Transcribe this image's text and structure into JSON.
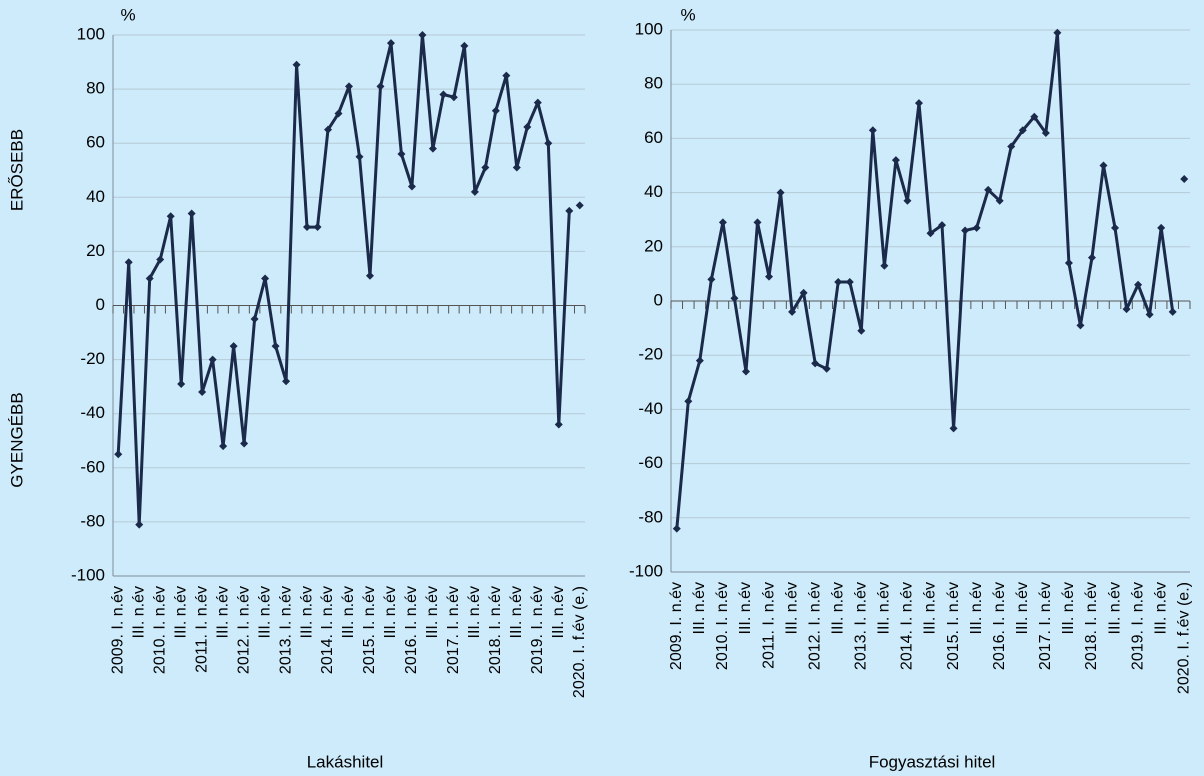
{
  "chart_data": [
    {
      "type": "line",
      "xlabel": "Lakáshitel",
      "unit_label": "%",
      "annotations": [
        "ERŐSEBB",
        "GYENGÉBB"
      ],
      "categories": [
        "2009. I. n.év",
        null,
        "III. n.év",
        null,
        "2010. I. n.év",
        null,
        "III. n.év",
        null,
        "2011. I. n.év",
        null,
        "III. n.év",
        null,
        "2012. I. n.év",
        null,
        "III. n.év",
        null,
        "2013. I. n.év",
        null,
        "III. n.év",
        null,
        "2014. I. n.év",
        null,
        "III. n.év",
        null,
        "2015. I. n.év",
        null,
        "III. n.év",
        null,
        "2016. I. n.év",
        null,
        "III. n.év",
        null,
        "2017. I. n.év",
        null,
        "III. n.év",
        null,
        "2018. I. n.év",
        null,
        "III. n.év",
        null,
        "2019. I. n.év",
        null,
        "III. n.év",
        null,
        "2020. I. f.év (e.)"
      ],
      "series": [
        {
          "color": "#1b2a4a",
          "values": [
            -55,
            16,
            -81,
            10,
            17,
            33,
            -29,
            34,
            -32,
            -20,
            -52,
            -15,
            -51,
            -5,
            10,
            -15,
            -28,
            89,
            29,
            29,
            65,
            71,
            81,
            55,
            11,
            81,
            97,
            56,
            44,
            100,
            58,
            78,
            77,
            96,
            42,
            51,
            72,
            85,
            51,
            66,
            75,
            60,
            -44,
            35,
            null
          ]
        },
        {
          "color": "#1b2a4a",
          "values": [
            null,
            null,
            null,
            null,
            null,
            null,
            null,
            null,
            null,
            null,
            null,
            null,
            null,
            null,
            null,
            null,
            null,
            null,
            null,
            null,
            null,
            null,
            null,
            null,
            null,
            null,
            null,
            null,
            null,
            null,
            null,
            null,
            null,
            null,
            null,
            null,
            null,
            null,
            null,
            null,
            null,
            null,
            null,
            null,
            37
          ]
        }
      ],
      "ylim": [
        -100,
        100
      ],
      "yticks": [
        -100,
        -80,
        -60,
        -40,
        -20,
        0,
        20,
        40,
        60,
        80,
        100
      ],
      "grid": true
    },
    {
      "type": "line",
      "xlabel": "Fogyasztási hitel",
      "unit_label": "%",
      "categories": [
        "2009. I. n.év",
        null,
        "III. n.év",
        null,
        "2010. I. n.év",
        null,
        "III. n.év",
        null,
        "2011. I. n.év",
        null,
        "III. n.év",
        null,
        "2012. I. n.év",
        null,
        "III. n.év",
        null,
        "2013. I. n.év",
        null,
        "III. n.év",
        null,
        "2014. I. n.év",
        null,
        "III. n.év",
        null,
        "2015. I. n.év",
        null,
        "III. n.év",
        null,
        "2016. I. n.év",
        null,
        "III. n.év",
        null,
        "2017. I. n.év",
        null,
        "III. n.év",
        null,
        "2018. I. n.év",
        null,
        "III. n.év",
        null,
        "2019. I. n.év",
        null,
        "III. n.év",
        null,
        "2020. I. f.év (e.)"
      ],
      "series": [
        {
          "color": "#1b2a4a",
          "values": [
            -84,
            -37,
            -22,
            8,
            29,
            1,
            -26,
            29,
            9,
            40,
            -4,
            3,
            -23,
            -25,
            7,
            7,
            -11,
            63,
            13,
            52,
            37,
            73,
            25,
            28,
            -47,
            26,
            27,
            41,
            37,
            57,
            63,
            68,
            62,
            99,
            14,
            -9,
            16,
            50,
            27,
            -3,
            6,
            -5,
            27,
            -4,
            null
          ]
        },
        {
          "color": "#1b2a4a",
          "values": [
            null,
            null,
            null,
            null,
            null,
            null,
            null,
            null,
            null,
            null,
            null,
            null,
            null,
            null,
            null,
            null,
            null,
            null,
            null,
            null,
            null,
            null,
            null,
            null,
            null,
            null,
            null,
            null,
            null,
            null,
            null,
            null,
            null,
            null,
            null,
            null,
            null,
            null,
            null,
            null,
            null,
            null,
            null,
            null,
            45
          ]
        }
      ],
      "ylim": [
        -100,
        100
      ],
      "yticks": [
        -100,
        -80,
        -60,
        -40,
        -20,
        0,
        20,
        40,
        60,
        80,
        100
      ],
      "grid": true
    }
  ]
}
